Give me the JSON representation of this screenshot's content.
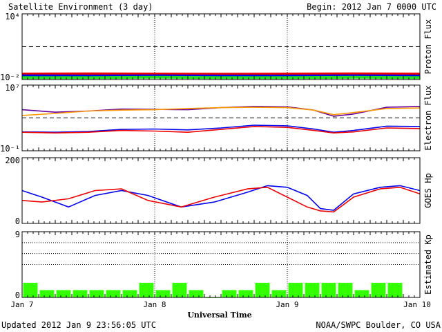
{
  "header": {
    "title": "Satellite Environment (3 day)",
    "begin": "Begin:  2012 Jan 7 0000 UTC"
  },
  "footer": {
    "updated": "Updated 2012 Jan  9 23:56:05 UTC",
    "credit": "NOAA/SWPC Boulder, CO USA"
  },
  "colors": {
    "red": "#ee0000",
    "blue": "#0000ee",
    "green": "#22dd22",
    "purple": "#660099",
    "orange": "#ff9900",
    "kp_green": "#33ff00"
  },
  "chart_data": [
    {
      "type": "line",
      "id": "proton",
      "ylabel": "Proton Flux",
      "yscale": "log",
      "ylim": [
        0.01,
        10000
      ],
      "ytick_labels": [
        "10⁴",
        "10⁻²"
      ],
      "threshold": 10,
      "x_range_days": [
        0,
        3
      ],
      "series": [
        {
          "color": "#ee0000",
          "x": [
            0,
            0.5,
            1,
            1.5,
            2,
            2.5,
            3
          ],
          "y": [
            0.032,
            0.033,
            0.032,
            0.031,
            0.032,
            0.033,
            0.032
          ]
        },
        {
          "color": "#0000ee",
          "x": [
            0,
            0.5,
            1,
            1.5,
            2,
            2.5,
            3
          ],
          "y": [
            0.022,
            0.021,
            0.022,
            0.021,
            0.021,
            0.022,
            0.021
          ]
        },
        {
          "color": "#22dd22",
          "x": [
            0,
            0.5,
            1,
            1.5,
            2,
            2.5,
            3
          ],
          "y": [
            0.015,
            0.015,
            0.016,
            0.015,
            0.015,
            0.016,
            0.015
          ]
        }
      ]
    },
    {
      "type": "line",
      "id": "electron",
      "ylabel": "Electron Flux",
      "yscale": "log",
      "ylim": [
        0.1,
        10000000
      ],
      "ytick_labels": [
        "10⁷",
        "10⁻¹"
      ],
      "threshold": 1000,
      "x_range_days": [
        0,
        3
      ],
      "series": [
        {
          "color": "#660099",
          "x": [
            0,
            0.25,
            0.5,
            0.75,
            1,
            1.25,
            1.5,
            1.75,
            2,
            2.2,
            2.35,
            2.5,
            2.75,
            3
          ],
          "y": [
            10000,
            5000,
            7000,
            12000,
            11000,
            10000,
            18000,
            25000,
            22000,
            9000,
            1600,
            3000,
            20000,
            25000
          ]
        },
        {
          "color": "#ff9900",
          "x": [
            0,
            0.25,
            0.5,
            0.75,
            1,
            1.25,
            1.5,
            1.75,
            2,
            2.2,
            2.35,
            2.5,
            2.75,
            3
          ],
          "y": [
            2000,
            3500,
            7000,
            9000,
            10000,
            14000,
            18000,
            20000,
            18000,
            9000,
            2500,
            4500,
            14000,
            16000
          ]
        },
        {
          "color": "#0000ee",
          "x": [
            0,
            0.25,
            0.5,
            0.75,
            1,
            1.25,
            1.5,
            1.75,
            2,
            2.2,
            2.35,
            2.5,
            2.75,
            3
          ],
          "y": [
            20,
            18,
            22,
            40,
            45,
            35,
            60,
            130,
            110,
            45,
            18,
            30,
            100,
            90
          ]
        },
        {
          "color": "#ee0000",
          "x": [
            0,
            0.25,
            0.5,
            0.75,
            1,
            1.25,
            1.5,
            1.75,
            2,
            2.2,
            2.35,
            2.5,
            2.75,
            3
          ],
          "y": [
            18,
            15,
            18,
            30,
            25,
            18,
            40,
            90,
            70,
            30,
            15,
            20,
            60,
            50
          ]
        }
      ]
    },
    {
      "type": "line",
      "id": "hp",
      "ylabel": "GOES Hp",
      "yscale": "linear",
      "ylim": [
        0,
        200
      ],
      "ytick_labels": [
        "200",
        "0"
      ],
      "x_range_days": [
        0,
        3
      ],
      "series": [
        {
          "color": "#0000ee",
          "x": [
            0,
            0.15,
            0.35,
            0.55,
            0.75,
            0.95,
            1.2,
            1.45,
            1.7,
            1.85,
            2.0,
            2.15,
            2.25,
            2.35,
            2.5,
            2.7,
            2.85,
            3
          ],
          "y": [
            100,
            80,
            50,
            85,
            100,
            85,
            50,
            65,
            95,
            115,
            110,
            85,
            45,
            40,
            90,
            110,
            115,
            100
          ]
        },
        {
          "color": "#ee0000",
          "x": [
            0,
            0.15,
            0.35,
            0.55,
            0.75,
            0.95,
            1.2,
            1.45,
            1.7,
            1.85,
            2.0,
            2.15,
            2.25,
            2.35,
            2.5,
            2.7,
            2.85,
            3
          ],
          "y": [
            70,
            65,
            75,
            100,
            105,
            70,
            50,
            80,
            105,
            110,
            80,
            50,
            38,
            35,
            80,
            105,
            110,
            90
          ]
        }
      ]
    },
    {
      "type": "bar",
      "id": "kp",
      "ylabel": "Estimated Kp",
      "ylim": [
        0,
        9
      ],
      "ytick_labels": [
        "9",
        "0"
      ],
      "gridlines": [
        4.5,
        6,
        7.5,
        9
      ],
      "x_range_days": [
        0,
        3
      ],
      "bar_width_days": 0.125,
      "values": [
        2,
        1,
        1,
        1,
        1,
        1,
        1,
        2,
        1,
        2,
        1,
        0,
        1,
        1,
        2,
        1,
        2,
        2,
        2,
        2,
        1,
        2,
        2,
        null
      ]
    }
  ],
  "x_axis": {
    "labels": [
      "Jan 7",
      "Jan 8",
      "Jan 9",
      "Jan 10"
    ],
    "title": "Universal Time"
  }
}
